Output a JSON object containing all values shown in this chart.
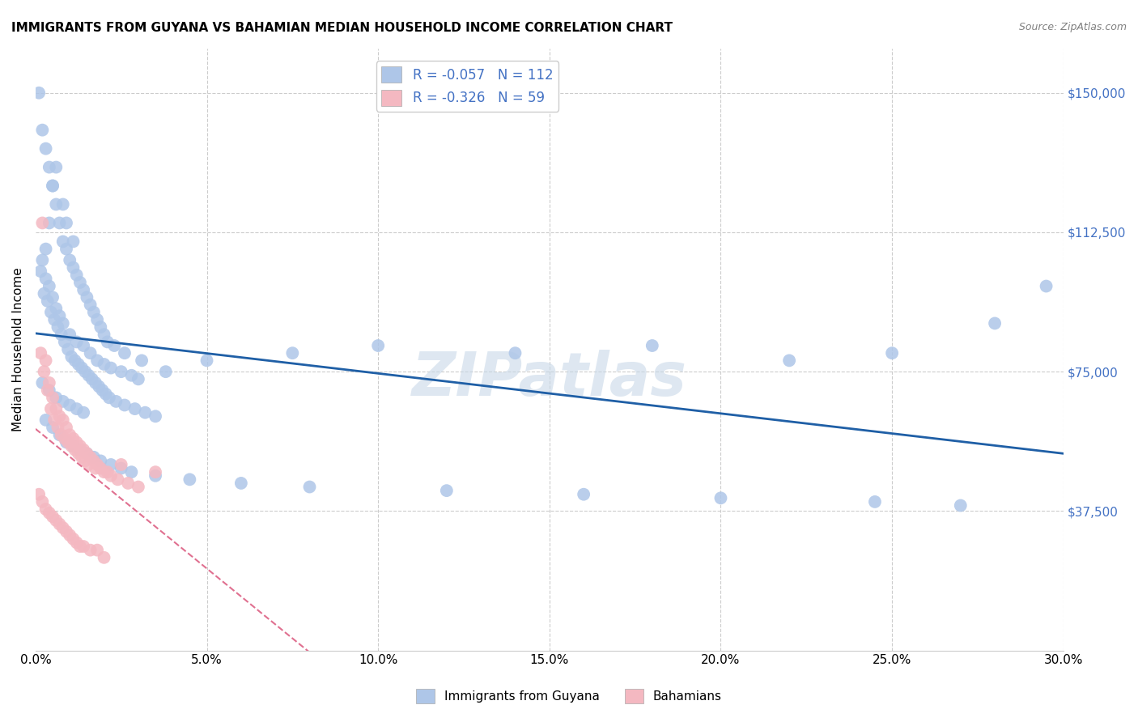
{
  "title": "IMMIGRANTS FROM GUYANA VS BAHAMIAN MEDIAN HOUSEHOLD INCOME CORRELATION CHART",
  "source": "Source: ZipAtlas.com",
  "xlabel_ticks": [
    "0.0%",
    "5.0%",
    "10.0%",
    "15.0%",
    "20.0%",
    "25.0%",
    "30.0%"
  ],
  "xlabel_values": [
    0.0,
    5.0,
    10.0,
    15.0,
    20.0,
    25.0,
    30.0
  ],
  "ylabel": "Median Household Income",
  "ylabel_ticks": [
    0,
    37500,
    75000,
    112500,
    150000
  ],
  "ylabel_labels": [
    "",
    "$37,500",
    "$75,000",
    "$112,500",
    "$150,000"
  ],
  "xlim": [
    0.0,
    30.0
  ],
  "ylim": [
    0,
    162000
  ],
  "series1_label": "Immigrants from Guyana",
  "series2_label": "Bahamians",
  "blue_scatter_color": "#aec6e8",
  "pink_scatter_color": "#f4b8c1",
  "blue_line_color": "#1f5fa6",
  "pink_line_color": "#e07090",
  "watermark": "ZIPatlas",
  "watermark_color": "#c8d8e8",
  "R1": -0.057,
  "N1": 112,
  "R2": -0.326,
  "N2": 59,
  "blue_scatter_x": [
    0.3,
    0.5,
    0.8,
    0.4,
    0.6,
    0.9,
    1.1,
    0.2,
    0.3,
    0.4,
    0.5,
    0.6,
    0.7,
    0.8,
    1.0,
    1.2,
    1.4,
    1.6,
    1.8,
    2.0,
    2.2,
    2.5,
    2.8,
    3.0,
    0.15,
    0.25,
    0.35,
    0.45,
    0.55,
    0.65,
    0.75,
    0.85,
    0.95,
    1.05,
    1.15,
    1.25,
    1.35,
    1.45,
    1.55,
    1.65,
    1.75,
    1.85,
    1.95,
    2.05,
    2.15,
    2.35,
    2.6,
    2.9,
    3.2,
    3.5,
    0.1,
    0.2,
    0.3,
    0.4,
    0.5,
    0.6,
    0.7,
    0.8,
    0.9,
    1.0,
    1.1,
    1.2,
    1.3,
    1.4,
    1.5,
    1.6,
    1.7,
    1.8,
    1.9,
    2.0,
    2.1,
    2.3,
    2.6,
    3.1,
    3.8,
    5.0,
    7.5,
    10.0,
    14.0,
    18.0,
    22.0,
    25.0,
    28.0,
    29.5,
    0.3,
    0.5,
    0.7,
    0.9,
    1.1,
    1.3,
    1.5,
    1.7,
    1.9,
    2.2,
    2.5,
    2.8,
    3.5,
    4.5,
    6.0,
    8.0,
    12.0,
    16.0,
    20.0,
    24.5,
    27.0,
    0.2,
    0.4,
    0.6,
    0.8,
    1.0,
    1.2,
    1.4
  ],
  "blue_scatter_y": [
    108000,
    125000,
    120000,
    115000,
    130000,
    115000,
    110000,
    105000,
    100000,
    98000,
    95000,
    92000,
    90000,
    88000,
    85000,
    83000,
    82000,
    80000,
    78000,
    77000,
    76000,
    75000,
    74000,
    73000,
    102000,
    96000,
    94000,
    91000,
    89000,
    87000,
    85000,
    83000,
    81000,
    79000,
    78000,
    77000,
    76000,
    75000,
    74000,
    73000,
    72000,
    71000,
    70000,
    69000,
    68000,
    67000,
    66000,
    65000,
    64000,
    63000,
    150000,
    140000,
    135000,
    130000,
    125000,
    120000,
    115000,
    110000,
    108000,
    105000,
    103000,
    101000,
    99000,
    97000,
    95000,
    93000,
    91000,
    89000,
    87000,
    85000,
    83000,
    82000,
    80000,
    78000,
    75000,
    78000,
    80000,
    82000,
    80000,
    82000,
    78000,
    80000,
    88000,
    98000,
    62000,
    60000,
    58000,
    56000,
    55000,
    54000,
    53000,
    52000,
    51000,
    50000,
    49000,
    48000,
    47000,
    46000,
    45000,
    44000,
    43000,
    42000,
    41000,
    40000,
    39000,
    72000,
    70000,
    68000,
    67000,
    66000,
    65000,
    64000
  ],
  "pink_scatter_x": [
    0.2,
    0.3,
    0.4,
    0.5,
    0.6,
    0.7,
    0.8,
    0.9,
    1.0,
    1.1,
    1.2,
    1.3,
    1.4,
    1.5,
    1.6,
    1.7,
    1.8,
    1.9,
    2.0,
    2.2,
    2.4,
    2.7,
    3.0,
    0.15,
    0.25,
    0.35,
    0.45,
    0.55,
    0.65,
    0.75,
    0.85,
    0.95,
    1.05,
    1.15,
    1.25,
    1.35,
    1.45,
    1.55,
    1.75,
    2.1,
    2.5,
    3.5,
    0.1,
    0.2,
    0.3,
    0.4,
    0.5,
    0.6,
    0.7,
    0.8,
    0.9,
    1.0,
    1.1,
    1.2,
    1.3,
    1.4,
    1.6,
    1.8,
    2.0
  ],
  "pink_scatter_y": [
    115000,
    78000,
    72000,
    68000,
    65000,
    63000,
    62000,
    60000,
    58000,
    57000,
    56000,
    55000,
    54000,
    53000,
    52000,
    51000,
    50000,
    49000,
    48000,
    47000,
    46000,
    45000,
    44000,
    80000,
    75000,
    70000,
    65000,
    62000,
    60000,
    58000,
    57000,
    56000,
    55000,
    54000,
    53000,
    52000,
    51000,
    50000,
    49000,
    48000,
    50000,
    48000,
    42000,
    40000,
    38000,
    37000,
    36000,
    35000,
    34000,
    33000,
    32000,
    31000,
    30000,
    29000,
    28000,
    28000,
    27000,
    27000,
    25000
  ]
}
